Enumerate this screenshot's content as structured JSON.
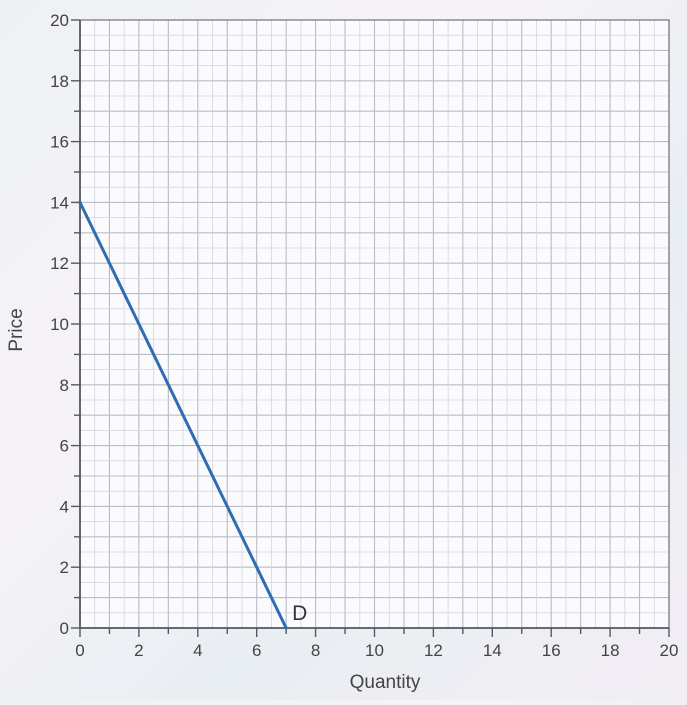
{
  "chart_data": {
    "type": "line",
    "xlabel": "Quantity",
    "ylabel": "Price",
    "xlim": [
      0,
      20
    ],
    "ylim": [
      0,
      20
    ],
    "grid": true,
    "x_ticks": [
      "0",
      "2",
      "4",
      "6",
      "8",
      "10",
      "12",
      "14",
      "16",
      "18",
      "20"
    ],
    "y_ticks": [
      "0",
      "2",
      "4",
      "6",
      "8",
      "10",
      "12",
      "14",
      "16",
      "18",
      "20"
    ],
    "series": [
      {
        "name": "D",
        "color": "#2f6db3",
        "points": [
          {
            "x": 0,
            "y": 14
          },
          {
            "x": 7,
            "y": 0
          }
        ]
      }
    ]
  }
}
